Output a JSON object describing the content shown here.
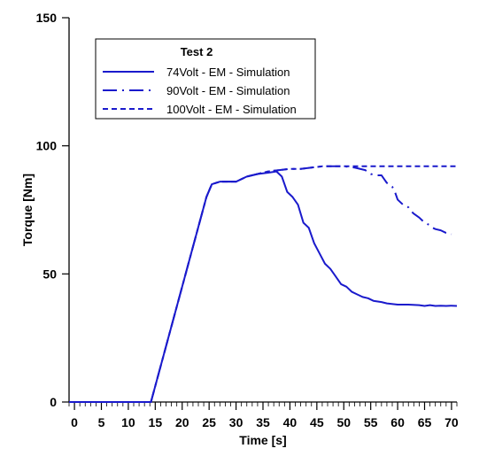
{
  "chart_data": {
    "type": "line",
    "title": "",
    "xlabel": "Time [s]",
    "ylabel": "Torque [Nm]",
    "xlim": [
      -1,
      71
    ],
    "ylim": [
      0,
      150
    ],
    "x_ticks": [
      0,
      5,
      10,
      15,
      20,
      25,
      30,
      35,
      40,
      45,
      50,
      55,
      60,
      65,
      70
    ],
    "y_ticks": [
      0,
      50,
      100,
      150
    ],
    "grid": false,
    "legend": {
      "title": "Test 2",
      "placement": "top-left"
    },
    "color": "#1a1acc",
    "series": [
      {
        "name": "74Volt - EM - Simulation",
        "style": "solid",
        "x": [
          -1,
          14.2,
          24.5,
          25.5,
          27,
          30,
          32,
          34,
          36,
          37.5,
          38.5,
          39.5,
          40.5,
          41.5,
          42.5,
          43.5,
          44.5,
          45.5,
          46.5,
          47.5,
          48.5,
          49.5,
          50.5,
          51.5,
          52.5,
          53.5,
          54.5,
          55.5,
          57,
          58,
          60,
          62,
          64,
          65,
          66,
          67,
          68,
          69,
          70,
          71
        ],
        "y": [
          0,
          0,
          80,
          85,
          86,
          86,
          88,
          89,
          89.5,
          90,
          88,
          82,
          80,
          77,
          70,
          68,
          62,
          58,
          54,
          52,
          49,
          46,
          45,
          43,
          42,
          41,
          40.5,
          39.5,
          39,
          38.5,
          38,
          38,
          37.8,
          37.5,
          37.8,
          37.5,
          37.6,
          37.5,
          37.6,
          37.5
        ]
      },
      {
        "name": "90Volt - EM - Simulation",
        "style": "dashdot",
        "x": [
          -1,
          14.2,
          24.5,
          25.5,
          27,
          30,
          32,
          34,
          36,
          38,
          40,
          42,
          44,
          46,
          48,
          50,
          52,
          54,
          55,
          56,
          57,
          57.5,
          58,
          59,
          59.5,
          60,
          61,
          62,
          62.5,
          63,
          64,
          65,
          66,
          66.5,
          67,
          68,
          69,
          70
        ],
        "y": [
          0,
          0,
          80,
          85,
          86,
          86,
          88,
          89,
          90,
          90.5,
          91,
          91,
          91.5,
          92,
          92,
          92,
          91.5,
          90.5,
          89,
          88.5,
          88.5,
          87,
          85.5,
          84,
          82,
          79,
          77,
          76,
          74.5,
          73.5,
          72,
          70,
          69,
          68,
          67.5,
          67,
          66,
          65.5
        ]
      },
      {
        "name": "100Volt - EM - Simulation",
        "style": "dashed",
        "x": [
          -1,
          14.2,
          24.5,
          25.5,
          27,
          30,
          32,
          34,
          36,
          38,
          40,
          42,
          44,
          46,
          48,
          50,
          52,
          54,
          56,
          58,
          60,
          62,
          64,
          66,
          68,
          70,
          71
        ],
        "y": [
          0,
          0,
          80,
          85,
          86,
          86,
          88,
          89,
          90,
          90.5,
          91,
          91,
          91.5,
          92,
          92,
          92,
          92,
          92,
          92,
          92,
          92,
          92,
          92,
          92,
          92,
          92,
          92
        ]
      }
    ]
  }
}
